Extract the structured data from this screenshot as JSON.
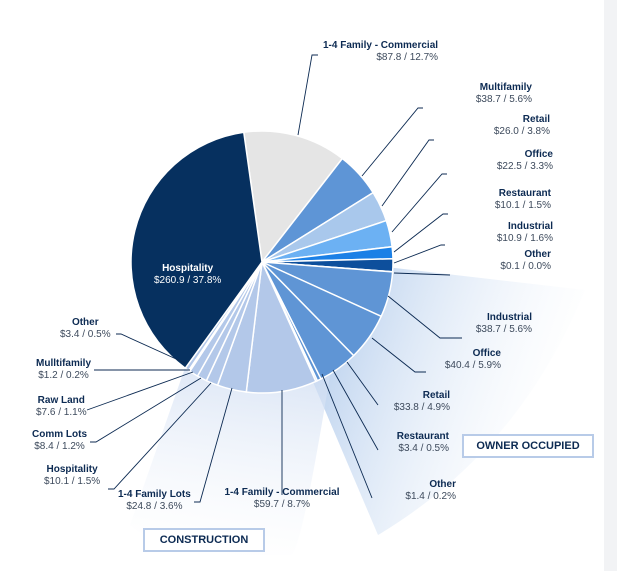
{
  "chart_data": {
    "type": "pie",
    "title": "",
    "start_angle_deg": -8,
    "groups": [
      {
        "name": "",
        "label": ""
      },
      {
        "name": "owner_occupied",
        "label": "OWNER OCCUPIED"
      },
      {
        "name": "construction",
        "label": "CONSTRUCTION"
      }
    ],
    "slices": [
      {
        "label": "1-4 Family - Commercial",
        "value_text": "$87.8  /  12.7%",
        "value": 87.8,
        "pct": 12.7,
        "group": "",
        "color": "#e5e5e5"
      },
      {
        "label": "Multifamily",
        "value_text": "$38.7  /  5.6%",
        "value": 38.7,
        "pct": 5.6,
        "group": "",
        "color": "#5e95d6"
      },
      {
        "label": "Retail",
        "value_text": "$26.0  /  3.8%",
        "value": 26.0,
        "pct": 3.8,
        "group": "",
        "color": "#a9c8ec"
      },
      {
        "label": "Office",
        "value_text": "$22.5  /  3.3%",
        "value": 22.5,
        "pct": 3.3,
        "group": "",
        "color": "#6cb1f3"
      },
      {
        "label": "Restaurant",
        "value_text": "$10.1  /  1.5%",
        "value": 10.1,
        "pct": 1.5,
        "group": "",
        "color": "#1b80e6"
      },
      {
        "label": "Industrial",
        "value_text": "$10.9  /  1.6%",
        "value": 10.9,
        "pct": 1.6,
        "group": "",
        "color": "#0d4f9c"
      },
      {
        "label": "Other",
        "value_text": "$0.1  /  0.0%",
        "value": 0.1,
        "pct": 0.0,
        "group": "",
        "color": "#0d4f9c"
      },
      {
        "label": "Industrial",
        "value_text": "$38.7  /  5.6%",
        "value": 38.7,
        "pct": 5.6,
        "group": "owner_occupied",
        "color": "#5f95d5"
      },
      {
        "label": "Office",
        "value_text": "$40.4  /  5.9%",
        "value": 40.4,
        "pct": 5.9,
        "group": "owner_occupied",
        "color": "#5f95d5"
      },
      {
        "label": "Retail",
        "value_text": "$33.8  /  4.9%",
        "value": 33.8,
        "pct": 4.9,
        "group": "owner_occupied",
        "color": "#5f95d5"
      },
      {
        "label": "Restaurant",
        "value_text": "$3.4  /  0.5%",
        "value": 3.4,
        "pct": 0.5,
        "group": "owner_occupied",
        "color": "#5f95d5"
      },
      {
        "label": "Other",
        "value_text": "$1.4  /  0.2%",
        "value": 1.4,
        "pct": 0.2,
        "group": "owner_occupied",
        "color": "#5f95d5"
      },
      {
        "label": "1-4 Family - Commercial",
        "value_text": "$59.7  /  8.7%",
        "value": 59.7,
        "pct": 8.7,
        "group": "construction",
        "color": "#b3c8e9"
      },
      {
        "label": "1-4 Family Lots",
        "value_text": "$24.8  /  3.6%",
        "value": 24.8,
        "pct": 3.6,
        "group": "construction",
        "color": "#b3c8e9"
      },
      {
        "label": "Hospitality",
        "value_text": "$10.1  /  1.5%",
        "value": 10.1,
        "pct": 1.5,
        "group": "construction",
        "color": "#b3c8e9"
      },
      {
        "label": "Comm Lots",
        "value_text": "$8.4  /  1.2%",
        "value": 8.4,
        "pct": 1.2,
        "group": "construction",
        "color": "#b3c8e9"
      },
      {
        "label": "Raw Land",
        "value_text": "$7.6  / 1.1%",
        "value": 7.6,
        "pct": 1.1,
        "group": "construction",
        "color": "#b3c8e9"
      },
      {
        "label": "Mulltifamily",
        "value_text": "$1.2  /  0.2%",
        "value": 1.2,
        "pct": 0.2,
        "group": "construction",
        "color": "#b3c8e9"
      },
      {
        "label": "Other",
        "value_text": "$3.4  / 0.5%",
        "value": 3.4,
        "pct": 0.5,
        "group": "construction",
        "color": "#b3c8e9"
      },
      {
        "label": "Hospitality",
        "value_text": "$260.9  /  37.8%",
        "value": 260.9,
        "pct": 37.8,
        "group": "",
        "color": "#06305f"
      }
    ]
  }
}
